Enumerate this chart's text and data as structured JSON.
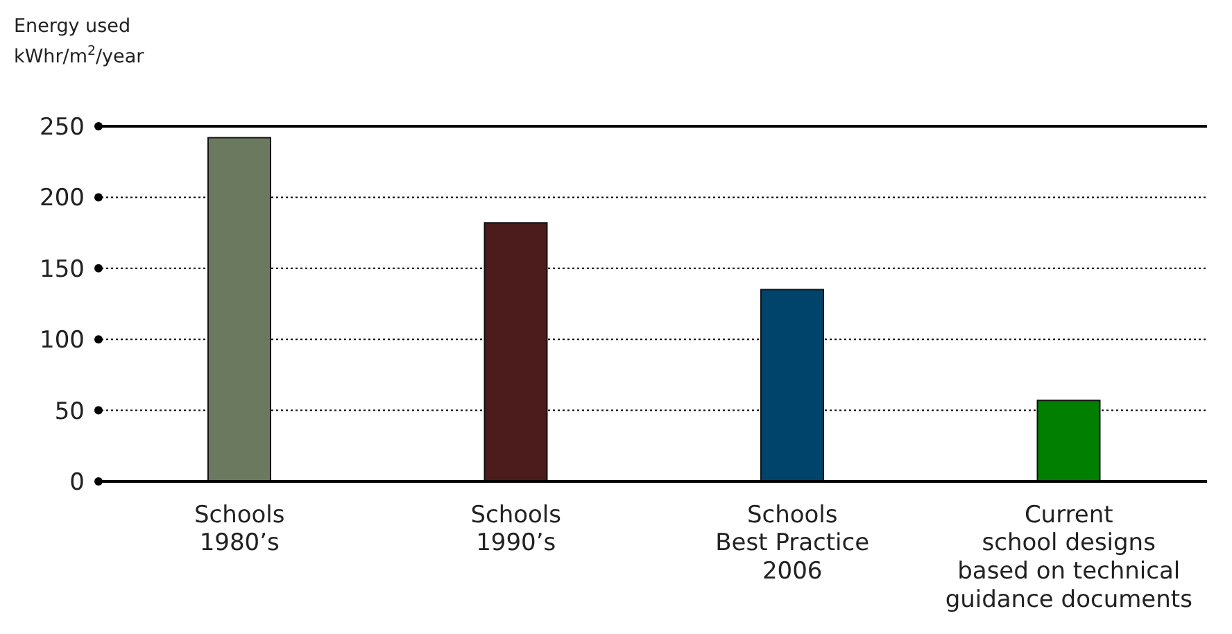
{
  "chart_data": {
    "type": "bar",
    "ylabel": "Energy used\nkWhr/m$^{2}$/year",
    "categories": [
      "Schools\n1980’s",
      "Schools\n1990’s",
      "Schools\nBest Practice\n2006",
      "Current\nschool designs\nbased on technical\nguidance documents"
    ],
    "values": [
      242,
      182,
      135,
      57
    ],
    "colors": [
      "#6b7a5e",
      "#4c1b1c",
      "#00446b",
      "#007f00"
    ],
    "ylim": [
      0,
      250
    ],
    "yticks": [
      0,
      50,
      100,
      150,
      200,
      250
    ],
    "grid": "y"
  }
}
